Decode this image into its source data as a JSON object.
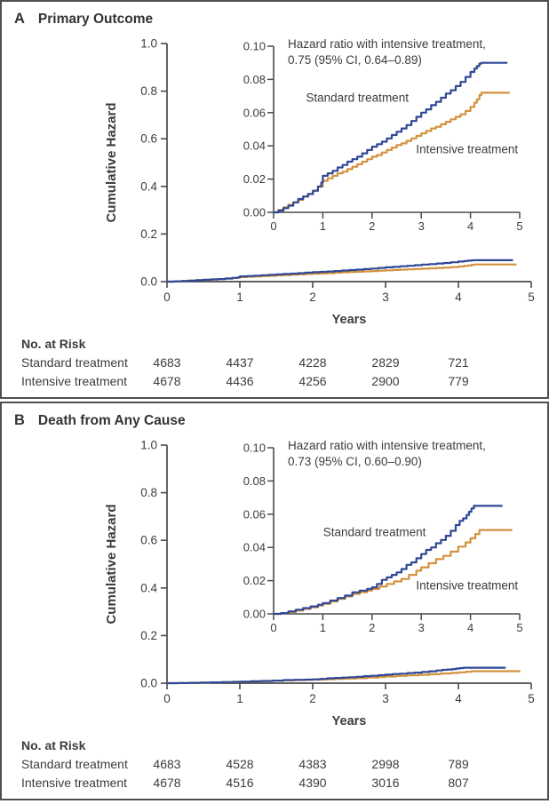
{
  "figure": {
    "background": "#ffffff",
    "border_color": "#4f4f4f",
    "text_color": "#3c3c3c",
    "axis_color": "#4a4a4a"
  },
  "chart_data": [
    {
      "type": "line",
      "panel_label": "A",
      "title": "Primary Outcome",
      "xlabel": "Years",
      "ylabel": "Cumulative Hazard",
      "annotation": [
        "Hazard ratio with intensive treatment,",
        "0.75 (95% CI, 0.64–0.89)"
      ],
      "main_axis": {
        "xlim": [
          0,
          5
        ],
        "ylim": [
          0,
          1.0
        ],
        "xticks": [
          "0",
          "1",
          "2",
          "3",
          "4",
          "5"
        ],
        "yticks": [
          "0.0",
          "0.2",
          "0.4",
          "0.6",
          "0.8",
          "1.0"
        ]
      },
      "inset_axis": {
        "xlim": [
          0,
          5
        ],
        "ylim": [
          0,
          0.1
        ],
        "xticks": [
          "0",
          "1",
          "2",
          "3",
          "4",
          "5"
        ],
        "yticks": [
          "0.00",
          "0.02",
          "0.04",
          "0.06",
          "0.08",
          "0.10"
        ]
      },
      "series": [
        {
          "name": "Standard treatment",
          "color": "#2f4896",
          "label_x": 1.7,
          "label_y": 0.069,
          "points": [
            [
              0,
              0
            ],
            [
              0.1,
              0.001
            ],
            [
              0.2,
              0.0025
            ],
            [
              0.3,
              0.004
            ],
            [
              0.4,
              0.006
            ],
            [
              0.5,
              0.008
            ],
            [
              0.6,
              0.0095
            ],
            [
              0.7,
              0.011
            ],
            [
              0.8,
              0.013
            ],
            [
              0.9,
              0.0155
            ],
            [
              0.97,
              0.018
            ],
            [
              1.0,
              0.022
            ],
            [
              1.1,
              0.0235
            ],
            [
              1.2,
              0.025
            ],
            [
              1.3,
              0.027
            ],
            [
              1.4,
              0.0285
            ],
            [
              1.5,
              0.0305
            ],
            [
              1.6,
              0.032
            ],
            [
              1.7,
              0.0335
            ],
            [
              1.8,
              0.0355
            ],
            [
              1.9,
              0.0375
            ],
            [
              2.0,
              0.0395
            ],
            [
              2.1,
              0.041
            ],
            [
              2.2,
              0.0425
            ],
            [
              2.3,
              0.0445
            ],
            [
              2.4,
              0.0465
            ],
            [
              2.5,
              0.0485
            ],
            [
              2.6,
              0.0505
            ],
            [
              2.7,
              0.0525
            ],
            [
              2.8,
              0.055
            ],
            [
              2.9,
              0.0575
            ],
            [
              3.0,
              0.06
            ],
            [
              3.1,
              0.062
            ],
            [
              3.2,
              0.0645
            ],
            [
              3.3,
              0.0665
            ],
            [
              3.4,
              0.069
            ],
            [
              3.5,
              0.0715
            ],
            [
              3.6,
              0.0735
            ],
            [
              3.7,
              0.076
            ],
            [
              3.8,
              0.0785
            ],
            [
              3.9,
              0.0815
            ],
            [
              4.0,
              0.0845
            ],
            [
              4.08,
              0.0865
            ],
            [
              4.13,
              0.088
            ],
            [
              4.18,
              0.0895
            ],
            [
              4.22,
              0.09
            ],
            [
              4.75,
              0.09
            ]
          ]
        },
        {
          "name": "Intensive treatment",
          "color": "#d3923e",
          "label_x": 3.93,
          "label_y": 0.038,
          "points": [
            [
              0,
              0
            ],
            [
              0.1,
              0.0015
            ],
            [
              0.2,
              0.003
            ],
            [
              0.3,
              0.0045
            ],
            [
              0.4,
              0.006
            ],
            [
              0.5,
              0.0075
            ],
            [
              0.6,
              0.0095
            ],
            [
              0.7,
              0.011
            ],
            [
              0.8,
              0.013
            ],
            [
              0.9,
              0.0155
            ],
            [
              1.0,
              0.019
            ],
            [
              1.1,
              0.0205
            ],
            [
              1.2,
              0.022
            ],
            [
              1.3,
              0.0235
            ],
            [
              1.4,
              0.0245
            ],
            [
              1.5,
              0.026
            ],
            [
              1.6,
              0.0275
            ],
            [
              1.7,
              0.029
            ],
            [
              1.8,
              0.0305
            ],
            [
              1.9,
              0.032
            ],
            [
              2.0,
              0.0335
            ],
            [
              2.1,
              0.0345
            ],
            [
              2.2,
              0.036
            ],
            [
              2.3,
              0.0375
            ],
            [
              2.4,
              0.039
            ],
            [
              2.5,
              0.0405
            ],
            [
              2.6,
              0.0415
            ],
            [
              2.7,
              0.043
            ],
            [
              2.8,
              0.0445
            ],
            [
              2.9,
              0.046
            ],
            [
              3.0,
              0.0475
            ],
            [
              3.1,
              0.049
            ],
            [
              3.2,
              0.0505
            ],
            [
              3.3,
              0.0515
            ],
            [
              3.4,
              0.053
            ],
            [
              3.5,
              0.0545
            ],
            [
              3.6,
              0.056
            ],
            [
              3.7,
              0.0575
            ],
            [
              3.8,
              0.059
            ],
            [
              3.9,
              0.061
            ],
            [
              4.0,
              0.0635
            ],
            [
              4.08,
              0.066
            ],
            [
              4.13,
              0.068
            ],
            [
              4.18,
              0.0705
            ],
            [
              4.22,
              0.072
            ],
            [
              4.8,
              0.072
            ]
          ]
        }
      ],
      "at_risk": {
        "header": "No. at Risk",
        "rows": [
          {
            "label": "Standard treatment",
            "values": [
              "4683",
              "4437",
              "4228",
              "2829",
              "721"
            ]
          },
          {
            "label": "Intensive treatment",
            "values": [
              "4678",
              "4436",
              "4256",
              "2900",
              "779"
            ]
          }
        ]
      }
    },
    {
      "type": "line",
      "panel_label": "B",
      "title": "Death from Any Cause",
      "xlabel": "Years",
      "ylabel": "Cumulative Hazard",
      "annotation": [
        "Hazard ratio with intensive treatment,",
        "0.73 (95% CI, 0.60–0.90)"
      ],
      "main_axis": {
        "xlim": [
          0,
          5
        ],
        "ylim": [
          0,
          1.0
        ],
        "xticks": [
          "0",
          "1",
          "2",
          "3",
          "4",
          "5"
        ],
        "yticks": [
          "0.0",
          "0.2",
          "0.4",
          "0.6",
          "0.8",
          "1.0"
        ]
      },
      "inset_axis": {
        "xlim": [
          0,
          5
        ],
        "ylim": [
          0,
          0.1
        ],
        "xticks": [
          "0",
          "1",
          "2",
          "3",
          "4",
          "5"
        ],
        "yticks": [
          "0.00",
          "0.02",
          "0.04",
          "0.06",
          "0.08",
          "0.10"
        ]
      },
      "series": [
        {
          "name": "Standard treatment",
          "color": "#2f4896",
          "label_x": 2.05,
          "label_y": 0.049,
          "points": [
            [
              0,
              0
            ],
            [
              0.15,
              0.0005
            ],
            [
              0.3,
              0.0015
            ],
            [
              0.45,
              0.0025
            ],
            [
              0.6,
              0.0035
            ],
            [
              0.75,
              0.0045
            ],
            [
              0.9,
              0.0055
            ],
            [
              1.0,
              0.0065
            ],
            [
              1.15,
              0.008
            ],
            [
              1.3,
              0.0095
            ],
            [
              1.45,
              0.011
            ],
            [
              1.6,
              0.013
            ],
            [
              1.75,
              0.014
            ],
            [
              1.9,
              0.015
            ],
            [
              2.0,
              0.016
            ],
            [
              2.1,
              0.018
            ],
            [
              2.2,
              0.0205
            ],
            [
              2.3,
              0.022
            ],
            [
              2.4,
              0.0235
            ],
            [
              2.5,
              0.025
            ],
            [
              2.6,
              0.027
            ],
            [
              2.7,
              0.0295
            ],
            [
              2.8,
              0.031
            ],
            [
              2.9,
              0.0335
            ],
            [
              3.0,
              0.036
            ],
            [
              3.1,
              0.0385
            ],
            [
              3.2,
              0.04
            ],
            [
              3.3,
              0.0425
            ],
            [
              3.4,
              0.0445
            ],
            [
              3.5,
              0.047
            ],
            [
              3.6,
              0.05
            ],
            [
              3.7,
              0.0535
            ],
            [
              3.78,
              0.056
            ],
            [
              3.85,
              0.0575
            ],
            [
              3.92,
              0.0595
            ],
            [
              3.97,
              0.0615
            ],
            [
              4.02,
              0.0635
            ],
            [
              4.07,
              0.065
            ],
            [
              4.65,
              0.065
            ]
          ]
        },
        {
          "name": "Intensive treatment",
          "color": "#d3923e",
          "label_x": 3.93,
          "label_y": 0.017,
          "points": [
            [
              0,
              0
            ],
            [
              0.15,
              0.0005
            ],
            [
              0.3,
              0.001
            ],
            [
              0.45,
              0.002
            ],
            [
              0.6,
              0.003
            ],
            [
              0.75,
              0.004
            ],
            [
              0.9,
              0.005
            ],
            [
              1.0,
              0.006
            ],
            [
              1.15,
              0.0075
            ],
            [
              1.3,
              0.009
            ],
            [
              1.45,
              0.0105
            ],
            [
              1.6,
              0.012
            ],
            [
              1.75,
              0.013
            ],
            [
              1.9,
              0.014
            ],
            [
              2.0,
              0.015
            ],
            [
              2.15,
              0.0165
            ],
            [
              2.3,
              0.018
            ],
            [
              2.45,
              0.0195
            ],
            [
              2.6,
              0.021
            ],
            [
              2.75,
              0.0235
            ],
            [
              2.9,
              0.026
            ],
            [
              3.0,
              0.028
            ],
            [
              3.15,
              0.0305
            ],
            [
              3.3,
              0.033
            ],
            [
              3.45,
              0.035
            ],
            [
              3.6,
              0.0375
            ],
            [
              3.75,
              0.0405
            ],
            [
              3.9,
              0.043
            ],
            [
              4.0,
              0.0455
            ],
            [
              4.1,
              0.048
            ],
            [
              4.18,
              0.0505
            ],
            [
              4.85,
              0.0505
            ]
          ]
        }
      ],
      "at_risk": {
        "header": "No. at Risk",
        "rows": [
          {
            "label": "Standard treatment",
            "values": [
              "4683",
              "4528",
              "4383",
              "2998",
              "789"
            ]
          },
          {
            "label": "Intensive treatment",
            "values": [
              "4678",
              "4516",
              "4390",
              "3016",
              "807"
            ]
          }
        ]
      }
    }
  ]
}
